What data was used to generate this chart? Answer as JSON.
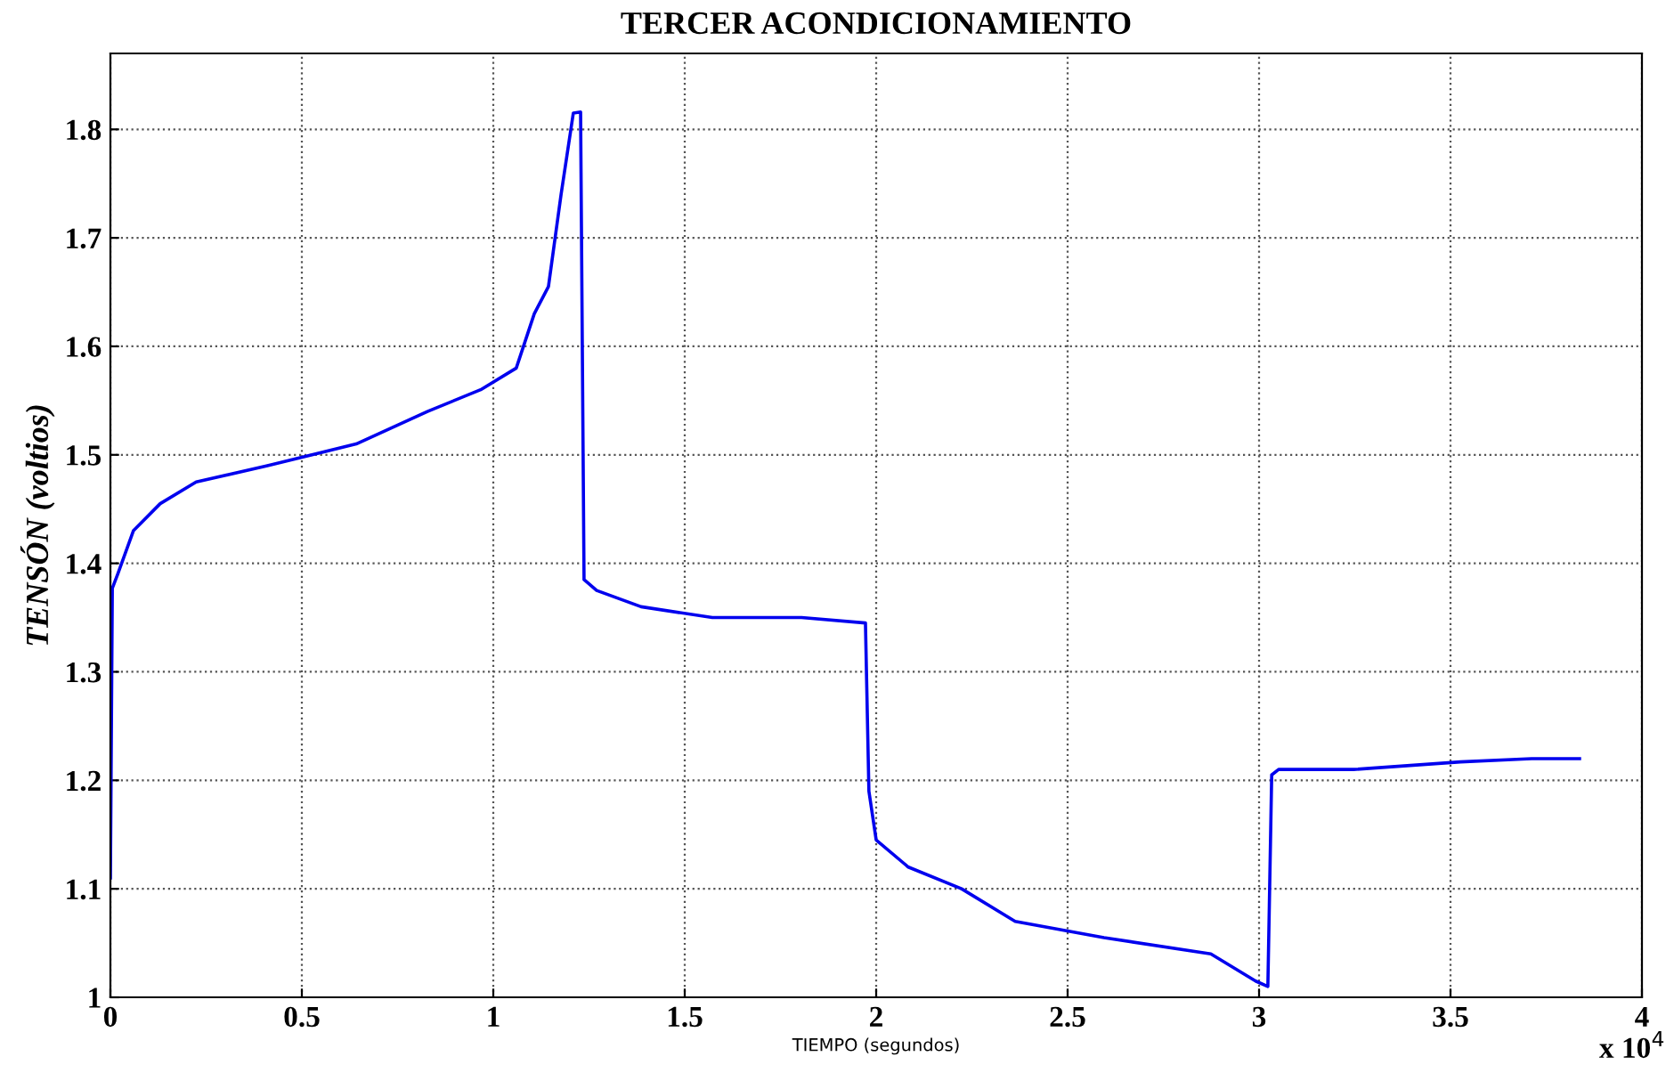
{
  "chart_data": {
    "type": "line",
    "title": "TERCER ACONDICIONAMIENTO",
    "xlabel": "TIEMPO (segundos)",
    "ylabel": "TENSÓN (voltios)",
    "annotations": [
      "x 10$^{4}$"
    ],
    "series": [
      {
        "color": "#0000ee",
        "x": [
          0,
          0.005,
          0.019,
          0.06,
          0.13,
          0.224,
          0.41,
          0.642,
          0.828,
          0.967,
          1.06,
          1.107,
          1.144,
          1.177,
          1.209,
          1.228,
          1.237,
          1.27,
          1.386,
          1.572,
          1.805,
          1.972,
          1.981,
          2.0,
          2.084,
          2.223,
          2.363,
          2.595,
          2.874,
          2.991,
          3.023,
          3.033,
          3.051,
          3.247,
          3.526,
          3.712,
          3.837
        ],
        "values": [
          1.11,
          1.377,
          1.39,
          1.43,
          1.455,
          1.475,
          1.49,
          1.51,
          1.54,
          1.56,
          1.58,
          1.63,
          1.655,
          1.74,
          1.815,
          1.816,
          1.385,
          1.375,
          1.36,
          1.35,
          1.35,
          1.345,
          1.19,
          1.145,
          1.12,
          1.1,
          1.07,
          1.055,
          1.04,
          1.015,
          1.01,
          1.205,
          1.21,
          1.21,
          1.217,
          1.22,
          1.22
        ]
      }
    ],
    "xlim": [
      0,
      4
    ],
    "xticks": [
      0,
      0.5,
      1,
      1.5,
      2,
      2.5,
      3,
      3.5,
      4
    ],
    "ylim": [
      1,
      1.87
    ],
    "yticks": [
      1,
      1.1,
      1.2,
      1.3,
      1.4,
      1.5,
      1.6,
      1.7,
      1.8
    ],
    "grid": true,
    "marker": "none",
    "line_style": "solid"
  }
}
